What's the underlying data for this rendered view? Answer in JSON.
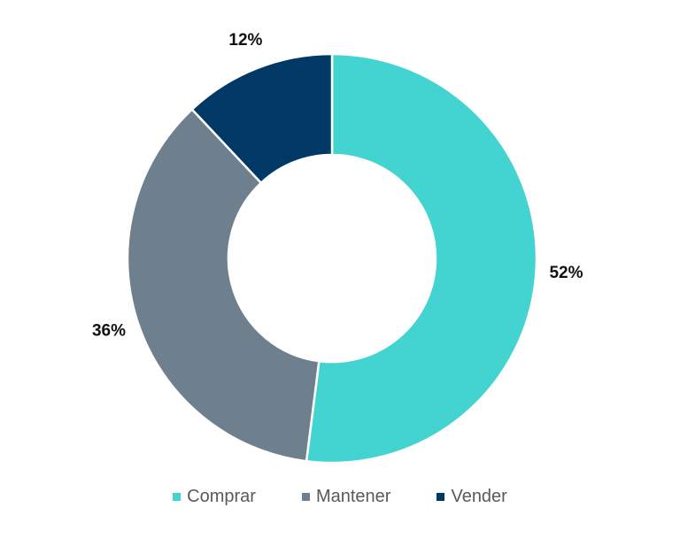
{
  "chart_data": {
    "type": "pie",
    "variant": "donut",
    "categories": [
      "Comprar",
      "Mantener",
      "Vender"
    ],
    "values": [
      52,
      36,
      12
    ],
    "labels": [
      "52%",
      "36%",
      "12%"
    ],
    "colors": [
      "#43d3d1",
      "#6e7f8d",
      "#003966"
    ],
    "legend_position": "bottom",
    "start": "top, clockwise"
  }
}
